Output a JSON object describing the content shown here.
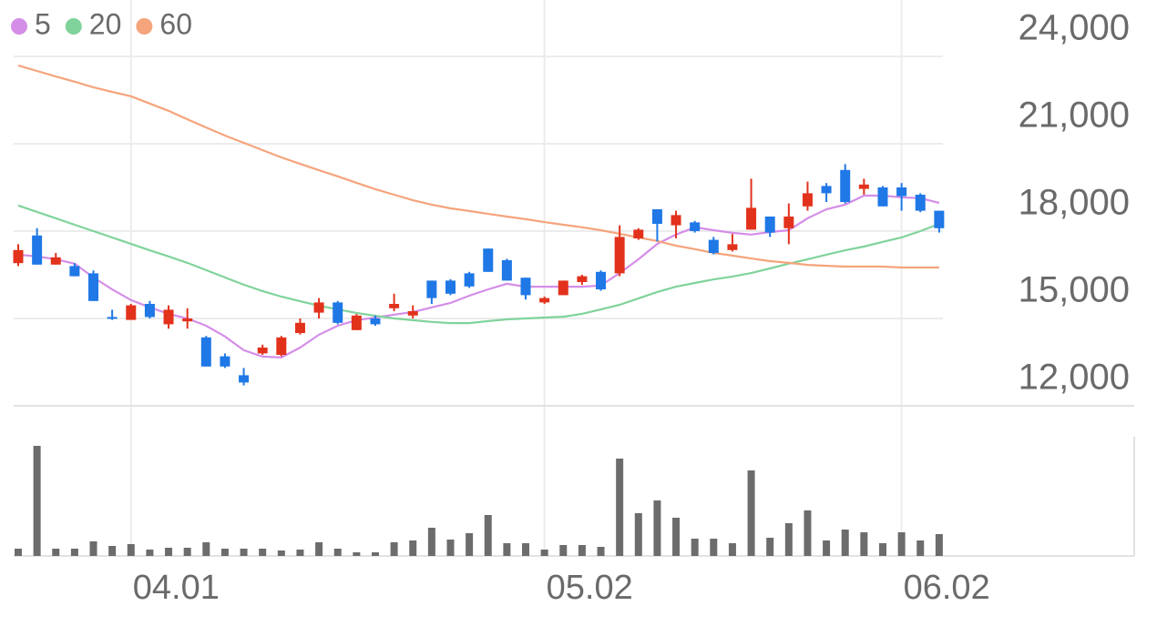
{
  "chart_data": {
    "type": "candlestick",
    "categories": [
      null,
      null,
      null,
      null,
      null,
      null,
      "04.01",
      null,
      null,
      null,
      null,
      null,
      null,
      null,
      null,
      null,
      null,
      null,
      null,
      null,
      null,
      null,
      null,
      null,
      null,
      null,
      null,
      null,
      "05.02",
      null,
      null,
      null,
      null,
      null,
      null,
      null,
      null,
      null,
      null,
      null,
      null,
      null,
      null,
      null,
      null,
      null,
      null,
      "06.02",
      null,
      null
    ],
    "open": [
      16900,
      17850,
      16850,
      16800,
      16550,
      15050,
      14950,
      15500,
      14800,
      14900,
      14350,
      13700,
      13050,
      13800,
      13750,
      14500,
      15200,
      15550,
      14600,
      15000,
      15350,
      15100,
      16300,
      16300,
      16550,
      17400,
      17000,
      16400,
      15550,
      15800,
      16250,
      16600,
      16550,
      17750,
      18750,
      18200,
      18300,
      17700,
      17350,
      18050,
      18500,
      18100,
      18850,
      19550,
      20100,
      19450,
      19500,
      19500,
      19250,
      18700
    ],
    "high": [
      17550,
      18100,
      17250,
      16900,
      16650,
      15300,
      15500,
      15600,
      15450,
      15350,
      14400,
      13800,
      13300,
      14100,
      14400,
      15000,
      15700,
      15600,
      15150,
      15100,
      15850,
      15450,
      16300,
      16350,
      16600,
      17400,
      17050,
      16400,
      15750,
      16300,
      16500,
      16650,
      18200,
      18100,
      18750,
      18700,
      18350,
      17800,
      17900,
      19800,
      18500,
      18950,
      19700,
      19650,
      20300,
      19800,
      19550,
      19650,
      19300,
      18700
    ],
    "low": [
      16800,
      16850,
      16850,
      16450,
      15600,
      14950,
      14950,
      15000,
      14650,
      14650,
      13350,
      13300,
      12700,
      13750,
      13700,
      14450,
      15000,
      14800,
      14600,
      14750,
      15250,
      15000,
      15500,
      15800,
      16050,
      16600,
      16300,
      15650,
      15500,
      15800,
      16150,
      15950,
      16450,
      17700,
      17650,
      17750,
      17950,
      17200,
      17300,
      18050,
      17800,
      17550,
      18700,
      19000,
      18950,
      19250,
      18850,
      18700,
      18650,
      17950
    ],
    "close": [
      17350,
      16850,
      17100,
      16450,
      15600,
      15000,
      15450,
      15050,
      15300,
      15000,
      13350,
      13350,
      12800,
      14000,
      14350,
      14850,
      15550,
      14850,
      15100,
      14800,
      15500,
      15250,
      15700,
      15850,
      16100,
      16600,
      16300,
      15800,
      15700,
      16300,
      16450,
      16000,
      17800,
      18050,
      18250,
      18550,
      18000,
      17250,
      17550,
      18800,
      17950,
      18500,
      19300,
      19300,
      19000,
      19600,
      18850,
      19200,
      18700,
      18100
    ],
    "volume": [
      8,
      121,
      8,
      8,
      16,
      11,
      13,
      7,
      9,
      9,
      15,
      8,
      8,
      8,
      6,
      7,
      15,
      8,
      4,
      4,
      15,
      17,
      31,
      18,
      25,
      45,
      14,
      14,
      7,
      12,
      12,
      10,
      107,
      47,
      61,
      42,
      19,
      19,
      14,
      94,
      20,
      36,
      50,
      17,
      29,
      26,
      14,
      26,
      17,
      24
    ],
    "up_color": "#e2321c",
    "down_color": "#1f78e6",
    "volume_color": "#6c6c6c",
    "moving_averages": [
      {
        "name": "5",
        "color": "#d48ee8",
        "values": [
          17190,
          17130,
          17030,
          16880,
          16410,
          16000,
          15630,
          15380,
          15160,
          15000,
          14750,
          14380,
          13910,
          13690,
          13660,
          14000,
          14440,
          14750,
          14940,
          15030,
          15130,
          15220,
          15380,
          15530,
          15780,
          16000,
          16190,
          16090,
          16090,
          16090,
          16090,
          16130,
          16560,
          17030,
          17560,
          17880,
          18130,
          18030,
          17940,
          17880,
          17970,
          18030,
          18440,
          18750,
          18910,
          19220,
          19220,
          19160,
          19130,
          18970
        ]
      },
      {
        "name": "20",
        "color": "#80d39b",
        "values": [
          18880,
          18660,
          18440,
          18220,
          18000,
          17780,
          17560,
          17340,
          17130,
          16910,
          16660,
          16410,
          16160,
          15940,
          15750,
          15590,
          15440,
          15310,
          15190,
          15090,
          15000,
          14940,
          14880,
          14840,
          14840,
          14910,
          14970,
          15000,
          15030,
          15060,
          15160,
          15310,
          15470,
          15690,
          15910,
          16090,
          16220,
          16340,
          16440,
          16560,
          16720,
          16880,
          17030,
          17190,
          17340,
          17470,
          17630,
          17780,
          18000,
          18250
        ]
      },
      {
        "name": "60",
        "color": "#f5a47c",
        "values": [
          23690,
          23500,
          23310,
          23130,
          22940,
          22780,
          22630,
          22380,
          22130,
          21840,
          21560,
          21280,
          21030,
          20780,
          20530,
          20310,
          20090,
          19880,
          19660,
          19440,
          19250,
          19060,
          18910,
          18780,
          18690,
          18590,
          18500,
          18410,
          18310,
          18220,
          18130,
          18030,
          17910,
          17780,
          17660,
          17500,
          17380,
          17250,
          17160,
          17060,
          16970,
          16910,
          16840,
          16810,
          16780,
          16780,
          16780,
          16750,
          16750,
          16750
        ]
      }
    ],
    "ylim": [
      12000,
      24000
    ],
    "yticks": [
      {
        "value": 12000,
        "label": "12,000"
      },
      {
        "value": 15000,
        "label": "15,000"
      },
      {
        "value": 18000,
        "label": "18,000"
      },
      {
        "value": 21000,
        "label": "21,000"
      },
      {
        "value": 24000,
        "label": "24,000"
      }
    ],
    "grid": true
  }
}
